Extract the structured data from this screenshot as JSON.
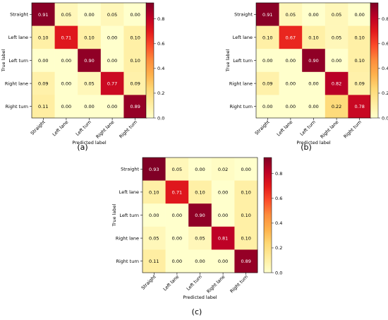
{
  "colors": {
    "scale": [
      "#ffffcc",
      "#ffeda0",
      "#fed976",
      "#feb24c",
      "#fd8d3c",
      "#fc4e2a",
      "#e31a1c",
      "#bd0026",
      "#800026"
    ],
    "light_text": "#ffffff",
    "dark_text": "#000000"
  },
  "chart_data": [
    {
      "type": "heatmap",
      "caption": "(a)",
      "xlabel": "Predicted label",
      "ylabel": "True label",
      "x_categories": [
        "Straight",
        "Left lane",
        "Left turn",
        "Right lane",
        "Right turn"
      ],
      "y_categories": [
        "Straight",
        "Left lane",
        "Left turn",
        "Right lane",
        "Right turn"
      ],
      "values": [
        [
          0.91,
          0.05,
          0.0,
          0.05,
          0.0
        ],
        [
          0.1,
          0.71,
          0.1,
          0.0,
          0.1
        ],
        [
          0.0,
          0.0,
          0.9,
          0.0,
          0.1
        ],
        [
          0.09,
          0.0,
          0.05,
          0.77,
          0.09
        ],
        [
          0.11,
          0.0,
          0.0,
          0.0,
          0.89
        ]
      ],
      "colorbar_range": [
        0,
        0.93
      ],
      "colorbar_ticks": [
        "0.0",
        "0.2",
        "0.4",
        "0.6",
        "0.8"
      ]
    },
    {
      "type": "heatmap",
      "caption": "(b)",
      "xlabel": "Predicted label",
      "ylabel": "True label",
      "x_categories": [
        "Straight",
        "Left lane",
        "Left turn",
        "Right lane",
        "Right turn"
      ],
      "y_categories": [
        "Straight",
        "Left lane",
        "Left turn",
        "Right lane",
        "Right turn"
      ],
      "values": [
        [
          0.91,
          0.05,
          0.0,
          0.05,
          0.0
        ],
        [
          0.1,
          0.67,
          0.1,
          0.05,
          0.1
        ],
        [
          0.0,
          0.0,
          0.9,
          0.0,
          0.1
        ],
        [
          0.09,
          0.0,
          0.0,
          0.82,
          0.09
        ],
        [
          0.0,
          0.0,
          0.0,
          0.22,
          0.78
        ]
      ],
      "colorbar_range": [
        0,
        0.93
      ],
      "colorbar_ticks": [
        "0.0",
        "0.2",
        "0.4",
        "0.6",
        "0.8"
      ]
    },
    {
      "type": "heatmap",
      "caption": "(c)",
      "xlabel": "Predicted label",
      "ylabel": "True label",
      "x_categories": [
        "Straight",
        "Left lane",
        "Left turn",
        "Right lane",
        "Right turn"
      ],
      "y_categories": [
        "Straight",
        "Left lane",
        "Left turn",
        "Right lane",
        "Right turn"
      ],
      "values": [
        [
          0.93,
          0.05,
          0.0,
          0.02,
          0.0
        ],
        [
          0.1,
          0.71,
          0.1,
          0.0,
          0.1
        ],
        [
          0.0,
          0.0,
          0.9,
          0.0,
          0.1
        ],
        [
          0.05,
          0.0,
          0.05,
          0.81,
          0.1
        ],
        [
          0.11,
          0.0,
          0.0,
          0.0,
          0.89
        ]
      ],
      "colorbar_range": [
        0,
        0.93
      ],
      "colorbar_ticks": [
        "0.0",
        "0.2",
        "0.4",
        "0.6",
        "0.8"
      ]
    }
  ]
}
